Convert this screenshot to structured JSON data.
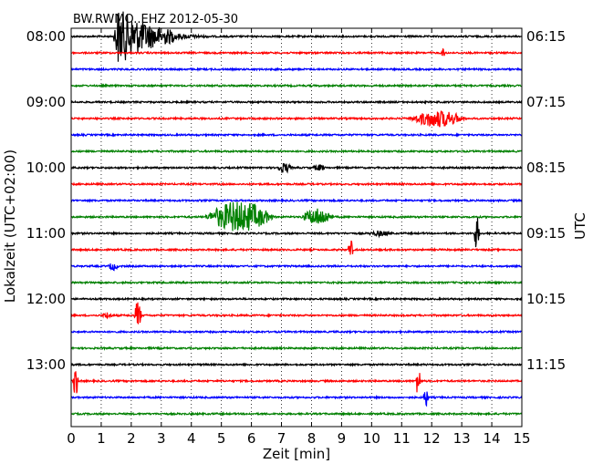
{
  "chart_data": {
    "type": "line",
    "title": "BW.RWMO..EHZ 2012-05-30",
    "xlabel": "Zeit  [min]",
    "ylabel_left": "Lokalzeit (UTC+02:00)",
    "ylabel_right": "UTC",
    "xlim": [
      0,
      15
    ],
    "x_ticks": [
      "0",
      "1",
      "2",
      "3",
      "4",
      "5",
      "6",
      "7",
      "8",
      "9",
      "10",
      "11",
      "12",
      "13",
      "14",
      "15"
    ],
    "grid_x": true,
    "left_hour_labels": [
      "08:00",
      "09:00",
      "10:00",
      "11:00",
      "12:00",
      "13:00"
    ],
    "right_hour_labels": [
      "06:15",
      "07:15",
      "08:15",
      "09:15",
      "10:15",
      "11:15"
    ],
    "trace_colors": [
      "#000000",
      "#ff0000",
      "#0000ff",
      "#008000"
    ],
    "trace_count": 24,
    "minutes_per_trace": 15,
    "events": [
      {
        "trace": 0,
        "x_start": 1.4,
        "x_end": 3.4,
        "amp": 1.0,
        "type": "quake"
      },
      {
        "trace": 0,
        "x_start": 3.4,
        "x_end": 6.5,
        "amp": 0.12,
        "type": "coda"
      },
      {
        "trace": 1,
        "x_start": 12.3,
        "x_end": 12.5,
        "amp": 0.15,
        "type": "spike"
      },
      {
        "trace": 5,
        "x_start": 11.2,
        "x_end": 13.2,
        "amp": 0.3,
        "type": "burst"
      },
      {
        "trace": 8,
        "x_start": 6.8,
        "x_end": 7.4,
        "amp": 0.18,
        "type": "burst"
      },
      {
        "trace": 8,
        "x_start": 8.0,
        "x_end": 8.5,
        "amp": 0.12,
        "type": "burst"
      },
      {
        "trace": 11,
        "x_start": 4.4,
        "x_end": 6.8,
        "amp": 0.55,
        "type": "burst"
      },
      {
        "trace": 11,
        "x_start": 7.6,
        "x_end": 8.8,
        "amp": 0.3,
        "type": "burst"
      },
      {
        "trace": 12,
        "x_start": 9.8,
        "x_end": 10.8,
        "amp": 0.1,
        "type": "burst"
      },
      {
        "trace": 12,
        "x_start": 13.4,
        "x_end": 13.6,
        "amp": 0.6,
        "type": "spike"
      },
      {
        "trace": 13,
        "x_start": 9.2,
        "x_end": 9.4,
        "amp": 0.35,
        "type": "spike"
      },
      {
        "trace": 14,
        "x_start": 1.2,
        "x_end": 1.6,
        "amp": 0.15,
        "type": "burst"
      },
      {
        "trace": 17,
        "x_start": 2.1,
        "x_end": 2.35,
        "amp": 0.55,
        "type": "spike"
      },
      {
        "trace": 17,
        "x_start": 1.0,
        "x_end": 1.4,
        "amp": 0.12,
        "type": "burst"
      },
      {
        "trace": 21,
        "x_start": 0.05,
        "x_end": 0.25,
        "amp": 0.55,
        "type": "spike"
      },
      {
        "trace": 21,
        "x_start": 11.45,
        "x_end": 11.65,
        "amp": 0.5,
        "type": "spike"
      },
      {
        "trace": 22,
        "x_start": 11.7,
        "x_end": 11.9,
        "amp": 0.35,
        "type": "spike"
      }
    ]
  }
}
